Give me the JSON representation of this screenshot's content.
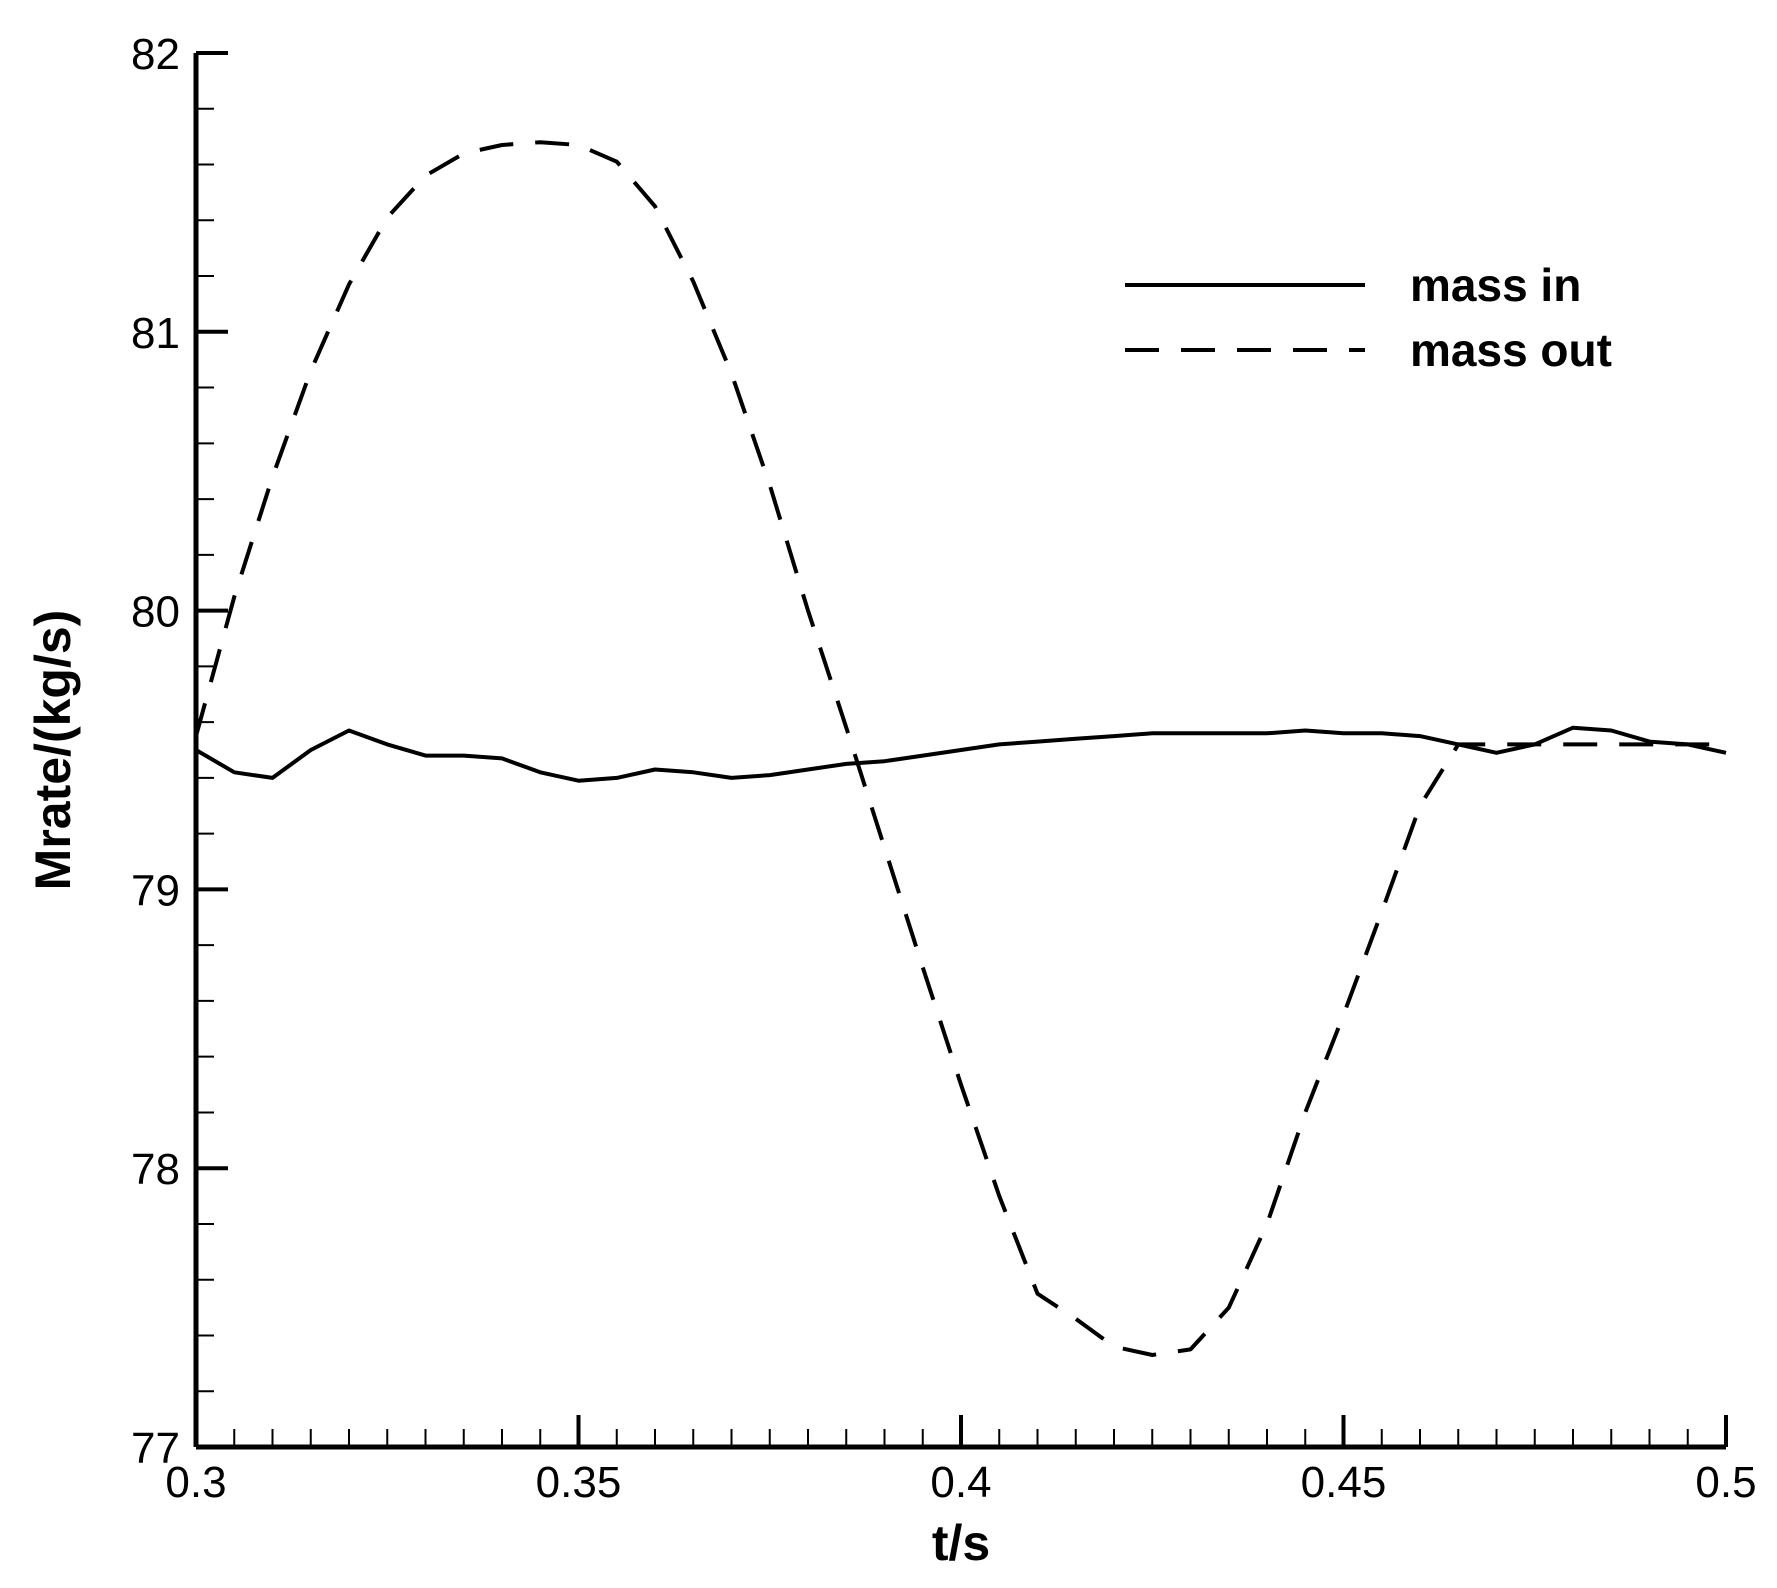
{
  "chart_data": {
    "type": "line",
    "title": "",
    "xlabel": "t/s",
    "ylabel": "Mrate/(kg/s)",
    "xlim": [
      0.3,
      0.5
    ],
    "ylim": [
      77,
      82
    ],
    "x_major_ticks": [
      0.3,
      0.35,
      0.4,
      0.45,
      0.5
    ],
    "x_tick_labels": [
      "0.3",
      "0.35",
      "0.4",
      "0.45",
      "0.5"
    ],
    "y_major_ticks": [
      77,
      78,
      79,
      80,
      81,
      82
    ],
    "y_tick_labels": [
      "77",
      "78",
      "79",
      "80",
      "81",
      "82"
    ],
    "x_minor_step": 0.005,
    "y_minor_step": 0.2,
    "grid": false,
    "legend_position": "top-right",
    "series": [
      {
        "name": "mass in",
        "style": "solid",
        "color": "#000000",
        "x": [
          0.3,
          0.305,
          0.31,
          0.315,
          0.32,
          0.325,
          0.33,
          0.335,
          0.34,
          0.345,
          0.35,
          0.355,
          0.36,
          0.365,
          0.37,
          0.375,
          0.38,
          0.385,
          0.39,
          0.395,
          0.4,
          0.405,
          0.41,
          0.415,
          0.42,
          0.425,
          0.43,
          0.435,
          0.44,
          0.445,
          0.45,
          0.455,
          0.46,
          0.465,
          0.47,
          0.475,
          0.48,
          0.485,
          0.49,
          0.495,
          0.5
        ],
        "y": [
          79.5,
          79.42,
          79.4,
          79.5,
          79.57,
          79.52,
          79.48,
          79.48,
          79.47,
          79.42,
          79.39,
          79.4,
          79.43,
          79.42,
          79.4,
          79.41,
          79.43,
          79.45,
          79.46,
          79.48,
          79.5,
          79.52,
          79.53,
          79.54,
          79.55,
          79.56,
          79.56,
          79.56,
          79.56,
          79.57,
          79.56,
          79.56,
          79.55,
          79.52,
          79.49,
          79.52,
          79.58,
          79.57,
          79.53,
          79.52,
          79.49
        ]
      },
      {
        "name": "mass out",
        "style": "dashed",
        "color": "#000000",
        "x": [
          0.3,
          0.305,
          0.31,
          0.315,
          0.32,
          0.325,
          0.33,
          0.335,
          0.34,
          0.345,
          0.35,
          0.355,
          0.36,
          0.365,
          0.37,
          0.375,
          0.38,
          0.385,
          0.39,
          0.395,
          0.4,
          0.405,
          0.41,
          0.415,
          0.42,
          0.425,
          0.43,
          0.435,
          0.44,
          0.445,
          0.45,
          0.455,
          0.46,
          0.465,
          0.47,
          0.475,
          0.48,
          0.485,
          0.49,
          0.495,
          0.5
        ],
        "y": [
          79.55,
          80.05,
          80.48,
          80.86,
          81.17,
          81.41,
          81.56,
          81.64,
          81.67,
          81.68,
          81.67,
          81.61,
          81.45,
          81.18,
          80.85,
          80.45,
          80.0,
          79.58,
          79.15,
          78.72,
          78.3,
          77.9,
          77.55,
          77.46,
          77.36,
          77.33,
          77.35,
          77.5,
          77.8,
          78.2,
          78.55,
          78.92,
          79.3,
          79.52,
          79.52,
          79.52,
          79.52,
          79.52,
          79.52,
          79.52,
          79.52
        ]
      }
    ]
  }
}
